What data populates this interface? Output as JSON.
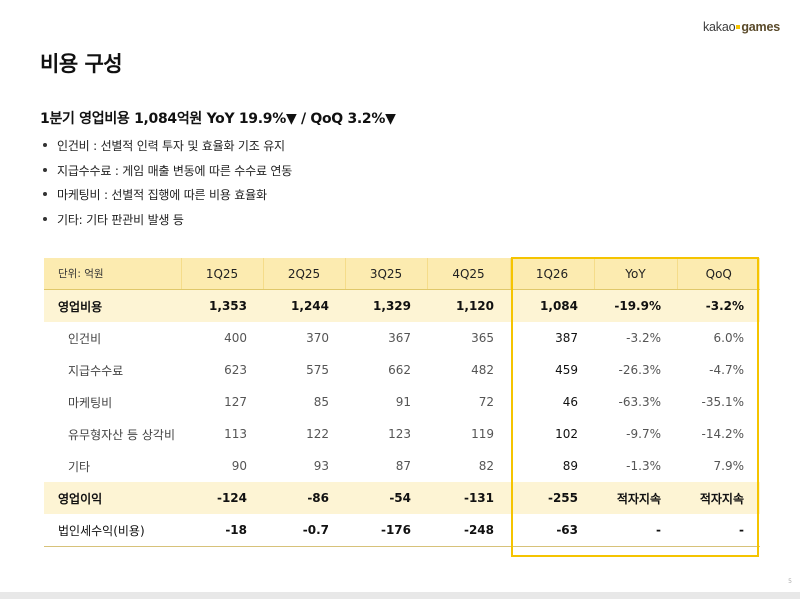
{
  "brand": {
    "logo_light": "kakao",
    "logo_bold": "games"
  },
  "page_title": "비용 구성",
  "subtitle": "1분기 영업비용 1,084억원 YoY 19.9%▼ / QoQ 3.2%▼",
  "bullets": [
    "인건비 : 선별적 인력 투자 및 효율화 기조 유지",
    "지급수수료 : 게임 매출 변동에 따른 수수료 연동",
    "마케팅비 : 선별적 집행에 따른 비용 효율화",
    "기타: 기타 판관비 발생 등"
  ],
  "table": {
    "unit": "단위: 억원",
    "columns": [
      "1Q25",
      "2Q25",
      "3Q25",
      "4Q25",
      "1Q26",
      "YoY",
      "QoQ"
    ],
    "rows": [
      {
        "label": "영업비용",
        "values": [
          "1,353",
          "1,244",
          "1,329",
          "1,120",
          "1,084",
          "-19.9%",
          "-3.2%"
        ]
      },
      {
        "label": "인건비",
        "values": [
          "400",
          "370",
          "367",
          "365",
          "387",
          "-3.2%",
          "6.0%"
        ]
      },
      {
        "label": "지급수수료",
        "values": [
          "623",
          "575",
          "662",
          "482",
          "459",
          "-26.3%",
          "-4.7%"
        ]
      },
      {
        "label": "마케팅비",
        "values": [
          "127",
          "85",
          "91",
          "72",
          "46",
          "-63.3%",
          "-35.1%"
        ]
      },
      {
        "label": "유무형자산 등 상각비",
        "values": [
          "113",
          "122",
          "123",
          "119",
          "102",
          "-9.7%",
          "-14.2%"
        ]
      },
      {
        "label": "기타",
        "values": [
          "90",
          "93",
          "87",
          "82",
          "89",
          "-1.3%",
          "7.9%"
        ]
      },
      {
        "label": "영업이익",
        "values": [
          "-124",
          "-86",
          "-54",
          "-131",
          "-255",
          "적자지속",
          "적자지속"
        ]
      },
      {
        "label": "법인세수익(비용)",
        "values": [
          "-18",
          "-0.7",
          "-176",
          "-248",
          "-63",
          "-",
          "-"
        ]
      }
    ]
  },
  "colors": {
    "accent": "#f5c400",
    "header_bg": "#fcebb0",
    "major_row_bg": "#fdf4d4"
  },
  "page_number": "5"
}
